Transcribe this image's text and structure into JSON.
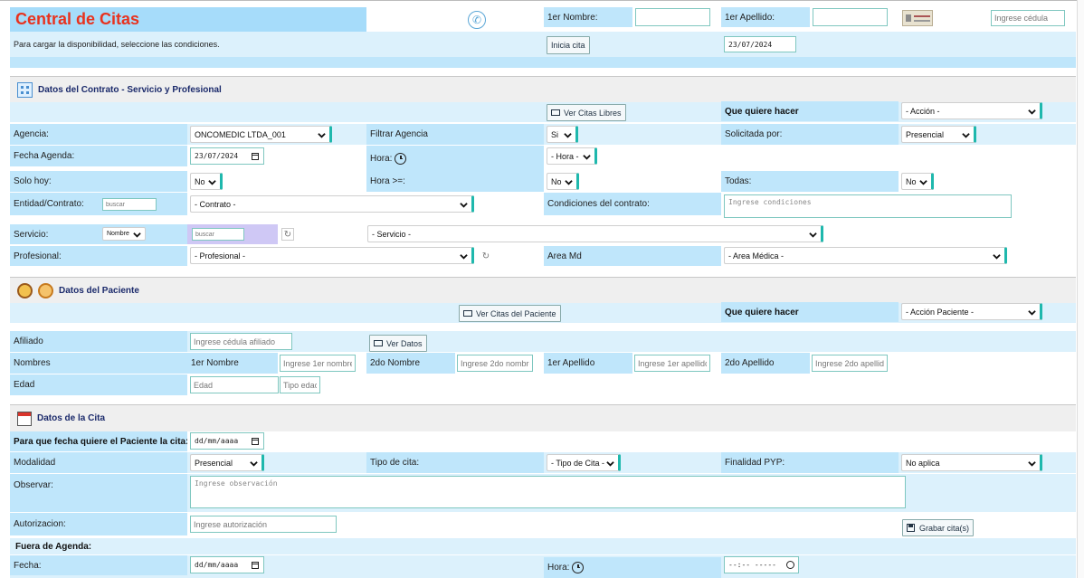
{
  "header": {
    "title": "Central de Citas",
    "subtitle": "Para cargar la disponibilidad, seleccione las condiciones.",
    "primer_nombre_label": "1er Nombre:",
    "primer_apellido_label": "1er Apellido:",
    "cedula_placeholder": "Ingrese cédula",
    "inicia_cita_label": "Inicia cita",
    "fecha": "23/07/2024"
  },
  "contrato": {
    "section_title": "Datos del Contrato - Servicio y Profesional",
    "ver_citas_libres": "Ver Citas Libres",
    "que_quiere_hacer": "Que quiere hacer",
    "accion_value": "- Acción -",
    "agencia_label": "Agencia:",
    "agencia_value": "ONCOMEDIC LTDA_001",
    "filtrar_agencia_label": "Filtrar Agencia",
    "filtrar_agencia_value": "Si",
    "solicitada_por_label": "Solicitada por:",
    "solicitada_por_value": "Presencial",
    "fecha_agenda_label": "Fecha Agenda:",
    "fecha_agenda_value": "23/07/2024",
    "hora_label": "Hora:",
    "hora_value": "- Hora -",
    "solo_hoy_label": "Solo hoy:",
    "solo_hoy_value": "No",
    "hora_mayor_label": "Hora >=:",
    "hora_mayor_value": "No",
    "todas_label": "Todas:",
    "todas_value": "No",
    "entidad_label": "Entidad/Contrato:",
    "buscar_placeholder": "buscar",
    "contrato_value": "- Contrato -",
    "condiciones_label": "Condiciones del contrato:",
    "condiciones_placeholder": "Ingrese condiciones",
    "servicio_label": "Servicio:",
    "nombre_value": "Nombre",
    "servicio_value": "- Servicio -",
    "profesional_label": "Profesional:",
    "profesional_value": "- Profesional -",
    "area_md_label": "Area Md",
    "area_md_value": "- Area Médica -"
  },
  "paciente": {
    "section_title": "Datos del Paciente",
    "ver_citas_paciente": "Ver Citas del Paciente",
    "que_quiere_hacer": "Que quiere hacer",
    "accion_paciente_value": "- Acción Paciente -",
    "afiliado_label": "Afiliado",
    "afiliado_placeholder": "Ingrese cédula afiliado",
    "ver_datos": "Ver Datos",
    "nombres_label": "Nombres",
    "primer_nombre": "1er Nombre",
    "primer_nombre_placeholder": "Ingrese 1er nombre",
    "segundo_nombre": "2do Nombre",
    "segundo_nombre_placeholder": "Ingrese 2do nombre",
    "primer_apellido": "1er Apellido",
    "primer_apellido_placeholder": "Ingrese 1er apellido",
    "segundo_apellido": "2do Apellido",
    "segundo_apellido_placeholder": "Ingrese 2do apellido",
    "edad_label": "Edad",
    "edad_placeholder": "Edad",
    "tipo_edad_placeholder": "Tipo edad"
  },
  "cita": {
    "section_title": "Datos de la Cita",
    "fecha_paciente_label": "Para que fecha quiere el Paciente la cita:",
    "fecha_paciente_value": "dd/mm/aaaa",
    "modalidad_label": "Modalidad",
    "modalidad_value": "Presencial",
    "tipo_cita_label": "Tipo de cita:",
    "tipo_cita_value": "- Tipo de Cita -",
    "finalidad_label": "Finalidad PYP:",
    "finalidad_value": "No aplica",
    "observar_label": "Observar:",
    "observar_placeholder": "Ingrese observación",
    "autorizacion_label": "Autorizacion:",
    "autorizacion_placeholder": "Ingrese autorización",
    "grabar_label": "Grabar cita(s)",
    "fuera_agenda_label": "Fuera de Agenda:",
    "fecha_label": "Fecha:",
    "fecha_value": "dd/mm/aaaa",
    "hora_label": "Hora:",
    "hora_value": "--:-- -----"
  },
  "colors": {
    "title_red": "#e8321e",
    "label_blue": "#bfe6fb",
    "select_accent": "#1fb8ad",
    "section_title": "#1b2a6b"
  }
}
